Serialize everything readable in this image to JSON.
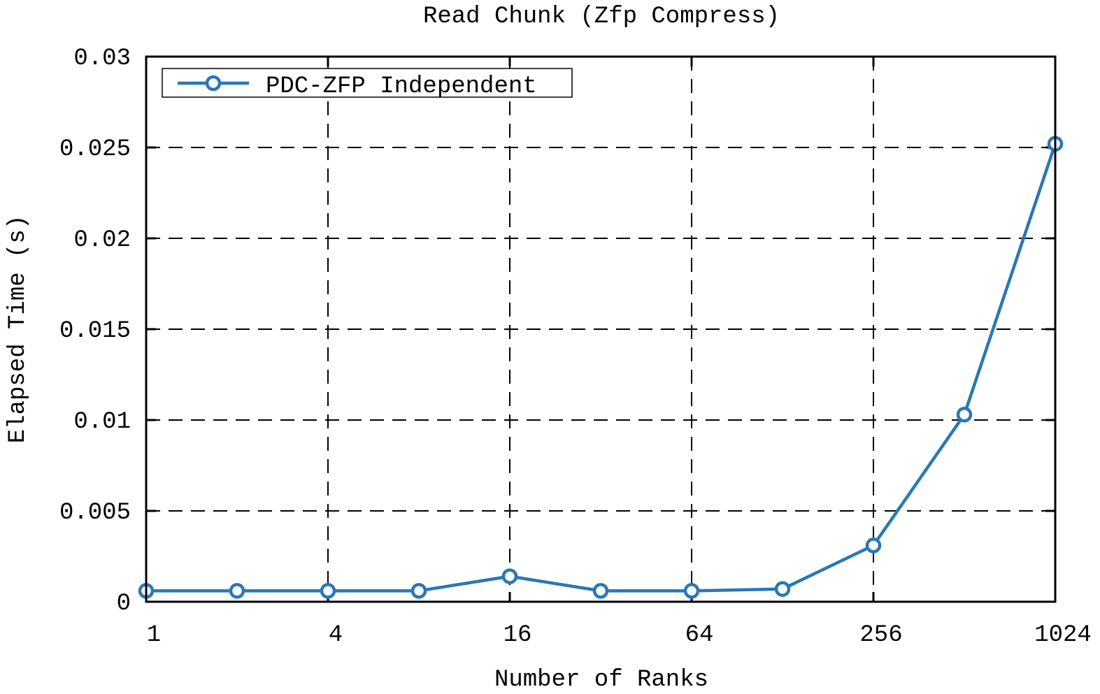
{
  "chart_data": {
    "type": "line",
    "title": "Read Chunk (Zfp Compress)",
    "xlabel": "Number of Ranks",
    "ylabel": "Elapsed Time (s)",
    "xscale": "log2",
    "xlim": [
      1,
      1024
    ],
    "ylim": [
      0,
      0.03
    ],
    "x_ticks": [
      1,
      4,
      16,
      64,
      256,
      1024
    ],
    "x_tick_labels": [
      "1",
      "4",
      "16",
      "64",
      "256",
      "1024"
    ],
    "y_ticks": [
      0,
      0.005,
      0.01,
      0.015,
      0.02,
      0.025,
      0.03
    ],
    "y_tick_labels": [
      "0",
      "0.005",
      "0.01",
      "0.015",
      "0.02",
      "0.025",
      "0.03"
    ],
    "grid": true,
    "legend_position": "top-left",
    "series": [
      {
        "name": "PDC-ZFP Independent",
        "color": "#2878b5",
        "marker": "circle-open",
        "x": [
          1,
          2,
          4,
          8,
          16,
          32,
          64,
          128,
          256,
          512,
          1024
        ],
        "y": [
          0.0006,
          0.0006,
          0.0006,
          0.0006,
          0.0014,
          0.0006,
          0.0006,
          0.0007,
          0.0031,
          0.0103,
          0.0252
        ]
      }
    ]
  }
}
